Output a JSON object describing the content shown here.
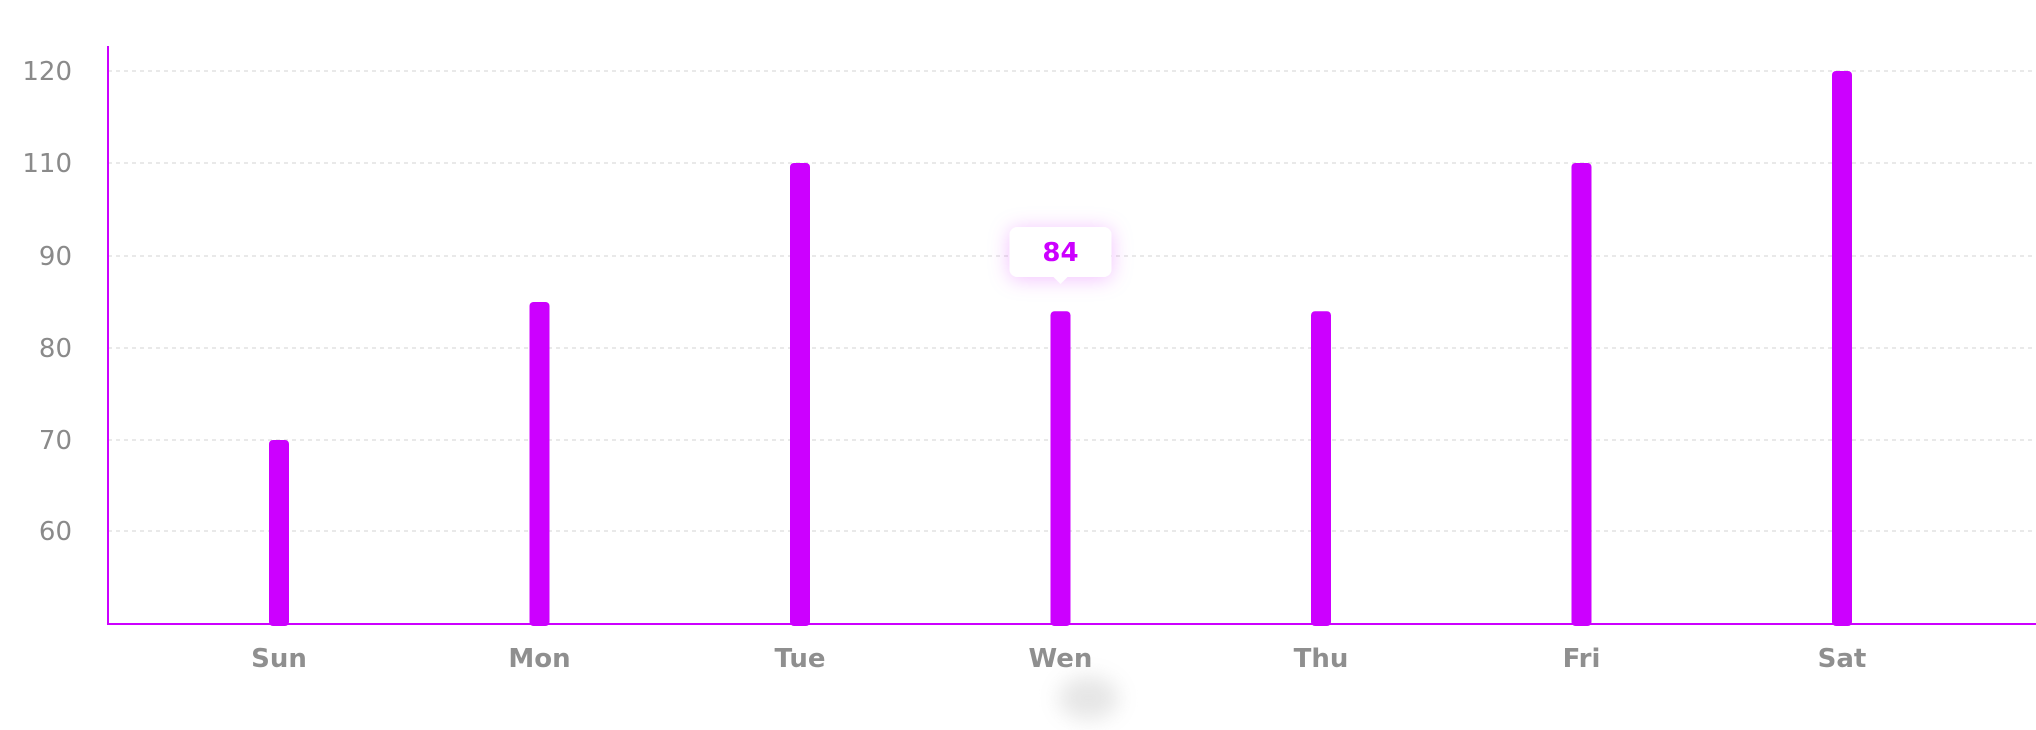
{
  "chart_data": {
    "type": "bar",
    "categories": [
      "Sun",
      "Mon",
      "Tue",
      "Wen",
      "Thu",
      "Fri",
      "Sat"
    ],
    "values": [
      70,
      85,
      110,
      84,
      84,
      110,
      120
    ],
    "yticks": [
      60,
      70,
      80,
      90,
      110,
      120
    ],
    "grid": true,
    "legend": "none",
    "tooltip": {
      "category": "Wen",
      "label": "84"
    }
  },
  "colors": {
    "bar": "#cc00ff",
    "axis": "#cc00ff",
    "grid": "#e2e2e2",
    "tooltip_text": "#cc00ff",
    "tooltip_bg": "#ffffff"
  }
}
